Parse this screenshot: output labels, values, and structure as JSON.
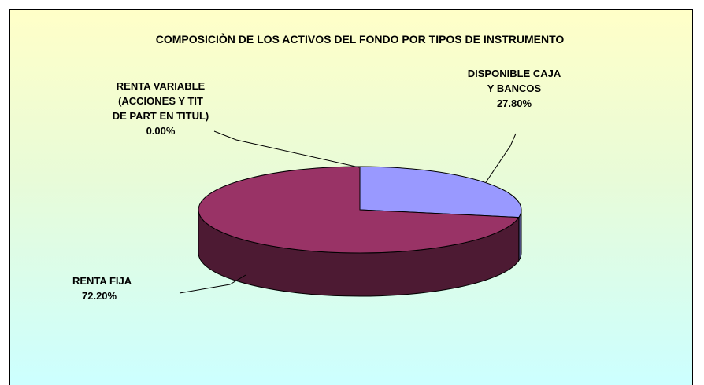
{
  "chart_data": {
    "type": "pie",
    "title": "COMPOSICIÒN DE LOS ACTIVOS DEL FONDO POR TIPOS DE INSTRUMENTO",
    "categories": [
      "DISPONIBLE CAJA Y BANCOS",
      "RENTA FIJA",
      "RENTA VARIABLE (ACCIONES Y TIT DE PART EN TITUL)"
    ],
    "values": [
      27.8,
      72.2,
      0
    ],
    "value_labels": [
      "27.80%",
      "72.20%",
      "0.00%"
    ],
    "colors": [
      "#9999ff",
      "#993366",
      "#ffffcc"
    ]
  }
}
